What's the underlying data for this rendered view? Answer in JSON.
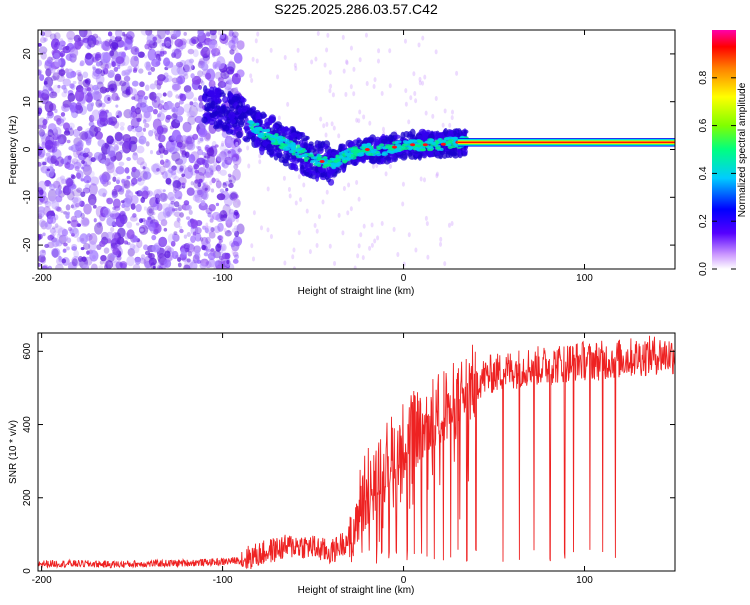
{
  "title": "S225.2025.286.03.57.C42",
  "chart_data": [
    {
      "type": "heatmap",
      "title": "S225.2025.286.03.57.C42",
      "xlabel": "Height of straight line (km)",
      "ylabel": "Frequency (Hz)",
      "xlim": [
        -202,
        150
      ],
      "ylim": [
        -25,
        25
      ],
      "xticks": [
        -200,
        -100,
        0,
        100
      ],
      "yticks": [
        -20,
        -10,
        0,
        10,
        20
      ],
      "xtick_labels": [
        "-200",
        "-100",
        "0",
        "100"
      ],
      "ytick_labels": [
        "-20",
        "-10",
        "0",
        "10",
        "20"
      ],
      "colorbar": {
        "label": "Normalized spectral amplitude",
        "range": [
          0,
          1
        ],
        "ticks": [
          "0.0",
          "0.2",
          "0.4",
          "0.6",
          "0.8"
        ],
        "colors": [
          "#ffffff",
          "#cc99ff",
          "#5500ff",
          "#0000ff",
          "#00ccff",
          "#00ff80",
          "#80ff00",
          "#ffff00",
          "#ff8000",
          "#ff0000",
          "#ff00aa"
        ]
      },
      "ridge": {
        "x_km": [
          -110,
          -100,
          -90,
          -80,
          -70,
          -60,
          -50,
          -40,
          -30,
          -20,
          -10,
          0,
          10,
          20,
          30,
          40,
          60,
          80,
          100,
          120,
          150
        ],
        "freq_hz": [
          10,
          8,
          7,
          4,
          2,
          0,
          -2,
          -3,
          -1,
          0,
          0,
          1,
          1,
          1,
          1.5,
          1.5,
          1.5,
          1.5,
          1.5,
          1.5,
          1.5
        ]
      }
    },
    {
      "type": "line",
      "title": "",
      "xlabel": "Height of straight line (km)",
      "ylabel": "SNR (10 * v/v)",
      "xlim": [
        -202,
        150
      ],
      "ylim": [
        0,
        650
      ],
      "xticks": [
        -200,
        -100,
        0,
        100
      ],
      "yticks": [
        0,
        200,
        400,
        600
      ],
      "xtick_labels": [
        "-200",
        "-100",
        "0",
        "100"
      ],
      "ytick_labels": [
        "0",
        "200",
        "400",
        "600"
      ],
      "color": "#ee2222",
      "series": [
        {
          "name": "SNR",
          "x": [
            -202,
            -180,
            -160,
            -140,
            -120,
            -100,
            -90,
            -80,
            -70,
            -60,
            -50,
            -40,
            -30,
            -25,
            -20,
            -15,
            -10,
            -5,
            0,
            5,
            10,
            20,
            30,
            40,
            50,
            60,
            70,
            80,
            90,
            100,
            110,
            120,
            130,
            140,
            150
          ],
          "values": [
            20,
            20,
            18,
            20,
            22,
            25,
            30,
            45,
            60,
            70,
            65,
            50,
            90,
            160,
            230,
            270,
            300,
            330,
            360,
            380,
            400,
            440,
            470,
            520,
            540,
            550,
            560,
            560,
            570,
            575,
            575,
            580,
            585,
            590,
            590
          ]
        }
      ],
      "dropouts_x": [
        -28,
        -23,
        -19,
        -15,
        -12,
        -8,
        -4,
        2,
        6,
        10,
        13,
        17,
        22,
        26,
        30,
        35,
        40,
        55,
        64,
        72,
        81,
        89,
        94,
        103,
        110,
        117
      ]
    }
  ]
}
